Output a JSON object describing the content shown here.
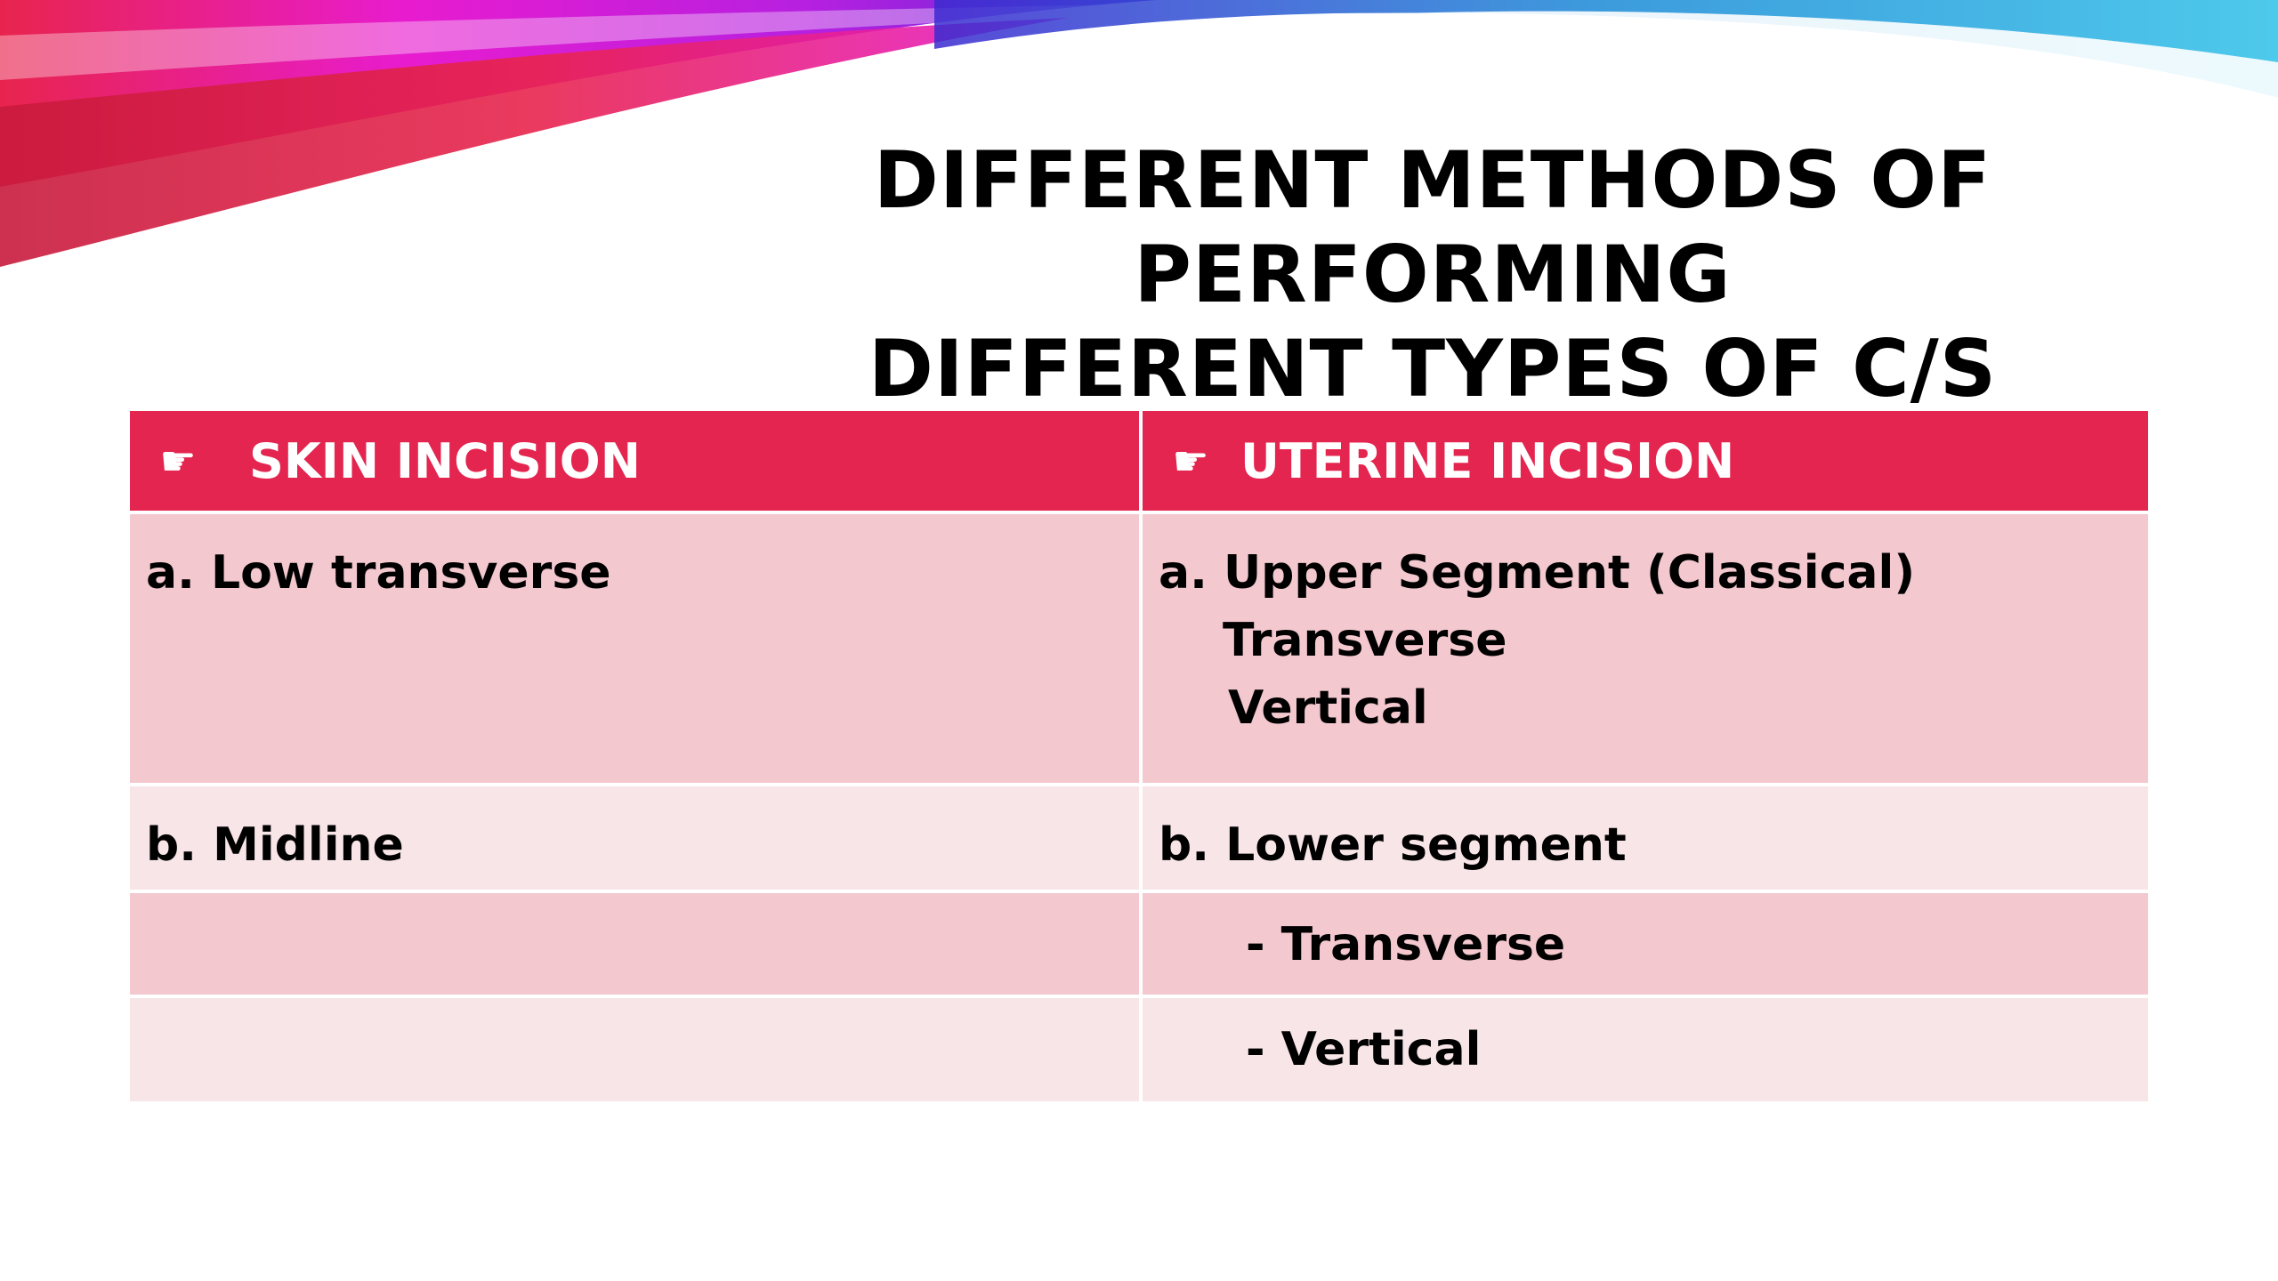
{
  "slide": {
    "title_lines": [
      "DIFFERENT METHODS OF PERFORMING",
      "DIFFERENT TYPES OF C/S"
    ],
    "colors": {
      "header_bg": "#e3254f",
      "row_dark": "#f3c8ce",
      "row_light": "#f8e5e7",
      "swoosh_magenta": "#e81ccf",
      "swoosh_red": "#e8244d",
      "swoosh_blue": "#1a8ad6"
    },
    "icons": [
      "pointing-hand-icon"
    ]
  },
  "table": {
    "headers": [
      "SKIN INCISION",
      "UTERINE INCISION"
    ],
    "rows": [
      {
        "left": [
          "a. Low transverse"
        ],
        "right": [
          "a. Upper Segment (Classical)",
          "Transverse",
          "Vertical"
        ]
      },
      {
        "left": [
          "b.  Midline"
        ],
        "right": [
          "b.  Lower segment"
        ]
      },
      {
        "left": [
          ""
        ],
        "right": [
          "- Transverse"
        ]
      },
      {
        "left": [
          ""
        ],
        "right": [
          "- Vertical"
        ]
      }
    ]
  }
}
